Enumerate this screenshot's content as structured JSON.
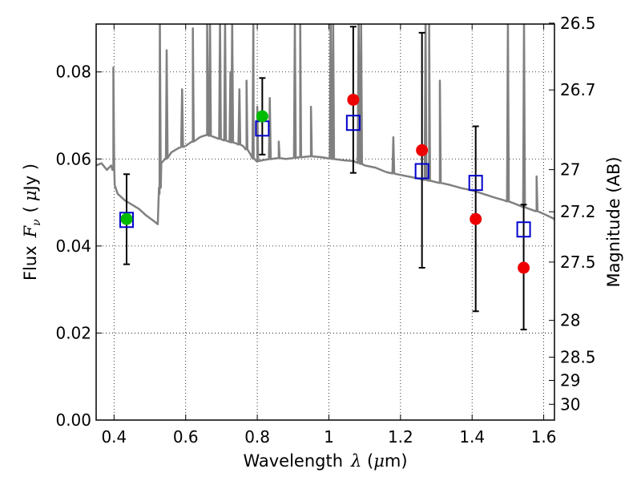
{
  "chart_data": {
    "type": "scatter",
    "xlabel": "Wavelength",
    "xlabel_symbol": "λ",
    "xlabel_unit_open": " (",
    "xlabel_unit_mu": "μ",
    "xlabel_unit_close": "m)",
    "ylabel": "Flux",
    "ylabel_symbol": "F",
    "ylabel_subscript": "ν",
    "ylabel_unit_open": "(",
    "ylabel_unit_mu": "μ",
    "ylabel_unit_close": "Jy )",
    "y2label": "Magnitude (AB)",
    "xlim": [
      0.35,
      1.63
    ],
    "ylim": [
      0.0,
      0.091
    ],
    "x_ticks": [
      0.4,
      0.6,
      0.8,
      1.0,
      1.2,
      1.4,
      1.6
    ],
    "x_tick_labels": [
      "0.4",
      "0.6",
      "0.8",
      "1",
      "1.2",
      "1.4",
      "1.6"
    ],
    "y_ticks": [
      0.0,
      0.02,
      0.04,
      0.06,
      0.08
    ],
    "y_tick_labels": [
      "0.00",
      "0.02",
      "0.04",
      "0.06",
      "0.08"
    ],
    "mag_ticks": [
      26.5,
      26.7,
      27,
      27.2,
      27.5,
      28,
      28.5,
      29,
      30
    ],
    "mag_tick_labels": [
      "26.5",
      "26.7",
      "27",
      "27.2",
      "27.5",
      "28",
      "28.5",
      "29",
      "30"
    ],
    "grid": true,
    "colors": {
      "model": "#808080",
      "model_fluxes": "#0000cc",
      "green_points": "#00bb00",
      "red_points": "#ee0000",
      "errorbars": "#000000"
    },
    "model_squares": [
      {
        "x": 0.435,
        "y": 0.046
      },
      {
        "x": 0.814,
        "y": 0.067
      },
      {
        "x": 1.068,
        "y": 0.0683
      },
      {
        "x": 1.26,
        "y": 0.0572
      },
      {
        "x": 1.41,
        "y": 0.0545
      },
      {
        "x": 1.544,
        "y": 0.0438
      }
    ],
    "green_points": [
      {
        "x": 0.435,
        "y": 0.0462
      },
      {
        "x": 0.814,
        "y": 0.0698
      }
    ],
    "red_points": [
      {
        "x": 1.068,
        "y": 0.0736
      },
      {
        "x": 1.26,
        "y": 0.062
      },
      {
        "x": 1.41,
        "y": 0.0462
      },
      {
        "x": 1.544,
        "y": 0.035
      }
    ],
    "errorbars": [
      {
        "x": 0.435,
        "low": 0.0358,
        "high": 0.0565
      },
      {
        "x": 0.814,
        "low": 0.061,
        "high": 0.0786
      },
      {
        "x": 1.068,
        "low": 0.0568,
        "high": 0.0904
      },
      {
        "x": 1.26,
        "low": 0.035,
        "high": 0.089
      },
      {
        "x": 1.41,
        "low": 0.025,
        "high": 0.0675
      },
      {
        "x": 1.544,
        "low": 0.0208,
        "high": 0.0495
      }
    ],
    "model_continuum": [
      [
        0.35,
        0.0585
      ],
      [
        0.365,
        0.059
      ],
      [
        0.38,
        0.0575
      ],
      [
        0.392,
        0.0585
      ],
      [
        0.398,
        0.0575
      ],
      [
        0.402,
        0.054
      ],
      [
        0.41,
        0.052
      ],
      [
        0.43,
        0.0505
      ],
      [
        0.45,
        0.0495
      ],
      [
        0.47,
        0.0485
      ],
      [
        0.49,
        0.047
      ],
      [
        0.51,
        0.0458
      ],
      [
        0.522,
        0.045
      ],
      [
        0.527,
        0.052
      ],
      [
        0.532,
        0.059
      ],
      [
        0.545,
        0.06
      ],
      [
        0.56,
        0.0615
      ],
      [
        0.58,
        0.0625
      ],
      [
        0.6,
        0.063
      ],
      [
        0.62,
        0.064
      ],
      [
        0.64,
        0.065
      ],
      [
        0.66,
        0.0655
      ],
      [
        0.68,
        0.065
      ],
      [
        0.7,
        0.0645
      ],
      [
        0.72,
        0.064
      ],
      [
        0.74,
        0.0636
      ],
      [
        0.76,
        0.063
      ],
      [
        0.77,
        0.0622
      ],
      [
        0.78,
        0.0612
      ],
      [
        0.79,
        0.06
      ],
      [
        0.8,
        0.0595
      ],
      [
        0.82,
        0.0598
      ],
      [
        0.84,
        0.06
      ],
      [
        0.86,
        0.0602
      ],
      [
        0.88,
        0.06
      ],
      [
        0.9,
        0.0602
      ],
      [
        0.92,
        0.0604
      ],
      [
        0.95,
        0.0606
      ],
      [
        0.98,
        0.0604
      ],
      [
        1.01,
        0.06
      ],
      [
        1.04,
        0.0597
      ],
      [
        1.07,
        0.0595
      ],
      [
        1.1,
        0.0585
      ],
      [
        1.13,
        0.058
      ],
      [
        1.16,
        0.057
      ],
      [
        1.19,
        0.0565
      ],
      [
        1.22,
        0.056
      ],
      [
        1.25,
        0.0555
      ],
      [
        1.28,
        0.055
      ],
      [
        1.31,
        0.0545
      ],
      [
        1.34,
        0.054
      ],
      [
        1.37,
        0.0533
      ],
      [
        1.4,
        0.0528
      ],
      [
        1.43,
        0.052
      ],
      [
        1.46,
        0.0512
      ],
      [
        1.49,
        0.0505
      ],
      [
        1.52,
        0.0497
      ],
      [
        1.55,
        0.0488
      ],
      [
        1.58,
        0.048
      ],
      [
        1.61,
        0.047
      ],
      [
        1.63,
        0.0462
      ]
    ],
    "model_emission_lines": [
      [
        0.398,
        0.081
      ],
      [
        0.528,
        0.092
      ],
      [
        0.547,
        0.085
      ],
      [
        0.59,
        0.076
      ],
      [
        0.62,
        0.09
      ],
      [
        0.66,
        0.092
      ],
      [
        0.668,
        0.092
      ],
      [
        0.696,
        0.092
      ],
      [
        0.71,
        0.092
      ],
      [
        0.725,
        0.08
      ],
      [
        0.73,
        0.092
      ],
      [
        0.75,
        0.076
      ],
      [
        0.77,
        0.078
      ],
      [
        0.789,
        0.092
      ],
      [
        0.8,
        0.072
      ],
      [
        0.835,
        0.074
      ],
      [
        0.86,
        0.064
      ],
      [
        0.905,
        0.092
      ],
      [
        0.92,
        0.092
      ],
      [
        0.95,
        0.072
      ],
      [
        1.005,
        0.092
      ],
      [
        1.012,
        0.092
      ],
      [
        1.083,
        0.092
      ],
      [
        1.09,
        0.092
      ],
      [
        1.18,
        0.065
      ],
      [
        1.27,
        0.092
      ],
      [
        1.28,
        0.092
      ],
      [
        1.31,
        0.078
      ],
      [
        1.5,
        0.092
      ],
      [
        1.545,
        0.092
      ],
      [
        1.58,
        0.056
      ]
    ]
  }
}
